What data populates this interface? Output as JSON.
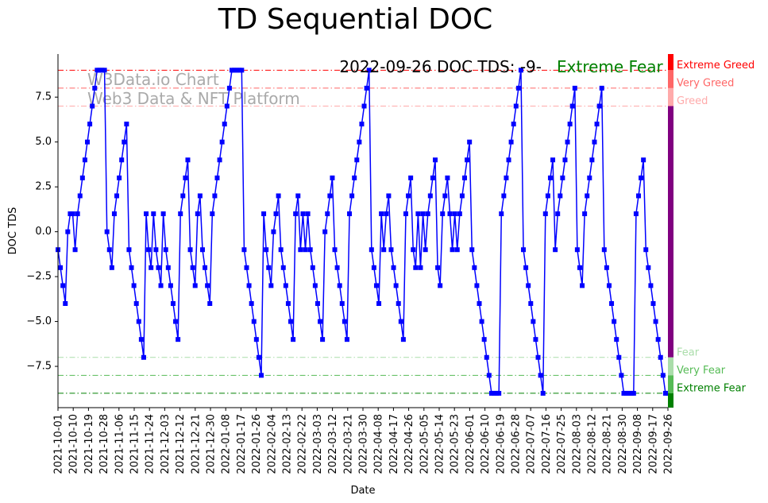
{
  "chart_data": {
    "type": "line",
    "title": "TD Sequential DOC",
    "xlabel": "Date",
    "ylabel": "DOC TDS",
    "ylim": [
      -9.8,
      9.9
    ],
    "yticks": [
      -7.5,
      -5.0,
      -2.5,
      0.0,
      2.5,
      5.0,
      7.5
    ],
    "ytick_labels": [
      "−7.5",
      "−5.0",
      "−2.5",
      "0.0",
      "2.5",
      "5.0",
      "7.5"
    ],
    "xticks": [
      "2021-10-01",
      "2021-10-10",
      "2021-10-19",
      "2021-10-28",
      "2021-11-06",
      "2021-11-15",
      "2021-11-24",
      "2021-12-03",
      "2021-12-12",
      "2021-12-21",
      "2021-12-30",
      "2022-01-08",
      "2022-01-17",
      "2022-01-26",
      "2022-02-04",
      "2022-02-13",
      "2022-02-22",
      "2022-03-03",
      "2022-03-12",
      "2022-03-21",
      "2022-03-30",
      "2022-04-08",
      "2022-04-17",
      "2022-04-26",
      "2022-05-05",
      "2022-05-14",
      "2022-05-23",
      "2022-06-01",
      "2022-06-10",
      "2022-06-19",
      "2022-06-28",
      "2022-07-07",
      "2022-07-16",
      "2022-07-25",
      "2022-08-03",
      "2022-08-12",
      "2022-08-21",
      "2022-08-30",
      "2022-09-08",
      "2022-09-17",
      "2022-09-26"
    ],
    "x_start": "2021-10-01",
    "x_end": "2022-09-26",
    "annotation": "2022-09-26 DOC TDS: -9-",
    "status_label": "Extreme Fear",
    "watermark": [
      "W3Data.io Chart",
      "Web3 Data & NFT Platform"
    ],
    "levels": [
      {
        "name": "Extreme Greed",
        "value": 9,
        "color": "#ff0000"
      },
      {
        "name": "Very Greed",
        "value": 8,
        "color": "#ff6666"
      },
      {
        "name": "Greed",
        "value": 7,
        "color": "#ffaaaa"
      },
      {
        "name": "Fear",
        "value": -7,
        "color": "#aaddaa"
      },
      {
        "name": "Very Fear",
        "value": -8,
        "color": "#55bb55"
      },
      {
        "name": "Extreme Fear",
        "value": -9,
        "color": "#008000"
      }
    ],
    "side_bar": [
      {
        "from": 9,
        "to": 9.9,
        "color": "#ff0000"
      },
      {
        "from": 8,
        "to": 9,
        "color": "#ff6666"
      },
      {
        "from": 7,
        "to": 8,
        "color": "#ffaaaa"
      },
      {
        "from": -7,
        "to": 7,
        "color": "#800080"
      },
      {
        "from": -8,
        "to": -7,
        "color": "#aaddaa"
      },
      {
        "from": -9,
        "to": -8,
        "color": "#55bb55"
      },
      {
        "from": -9.8,
        "to": -9,
        "color": "#008000"
      }
    ],
    "series": [
      {
        "name": "DOC TDS",
        "color": "#0000ff",
        "values": [
          -1,
          -2,
          -3,
          -4,
          0,
          1,
          1,
          -1,
          1,
          2,
          3,
          4,
          5,
          6,
          7,
          8,
          9,
          9,
          9,
          9,
          0,
          -1,
          -2,
          1,
          2,
          3,
          4,
          5,
          6,
          -1,
          -2,
          -3,
          -4,
          -5,
          -6,
          -7,
          1,
          -1,
          -2,
          1,
          -1,
          -2,
          -3,
          1,
          -1,
          -2,
          -3,
          -4,
          -5,
          -6,
          1,
          2,
          3,
          4,
          -1,
          -2,
          -3,
          1,
          2,
          -1,
          -2,
          -3,
          -4,
          1,
          2,
          3,
          4,
          5,
          6,
          7,
          8,
          9,
          9,
          9,
          9,
          9,
          -1,
          -2,
          -3,
          -4,
          -5,
          -6,
          -7,
          -8,
          1,
          -1,
          -2,
          -3,
          0,
          1,
          2,
          -1,
          -2,
          -3,
          -4,
          -5,
          -6,
          1,
          2,
          -1,
          1,
          -1,
          1,
          -1,
          -2,
          -3,
          -4,
          -5,
          -6,
          0,
          1,
          2,
          3,
          -1,
          -2,
          -3,
          -4,
          -5,
          -6,
          1,
          2,
          3,
          4,
          5,
          6,
          7,
          8,
          9,
          -1,
          -2,
          -3,
          -4,
          1,
          -1,
          1,
          2,
          -1,
          -2,
          -3,
          -4,
          -5,
          -6,
          1,
          2,
          3,
          -1,
          -2,
          1,
          -2,
          1,
          -1,
          1,
          2,
          3,
          4,
          -2,
          -3,
          1,
          2,
          3,
          1,
          -1,
          1,
          -1,
          1,
          2,
          3,
          4,
          5,
          -1,
          -2,
          -3,
          -4,
          -5,
          -6,
          -7,
          -8,
          -9,
          -9,
          -9,
          -9,
          1,
          2,
          3,
          4,
          5,
          6,
          7,
          8,
          9,
          -1,
          -2,
          -3,
          -4,
          -5,
          -6,
          -7,
          -8,
          -9,
          1,
          2,
          3,
          4,
          -1,
          1,
          2,
          3,
          4,
          5,
          6,
          7,
          8,
          -1,
          -2,
          -3,
          1,
          2,
          3,
          4,
          5,
          6,
          7,
          8,
          -1,
          -2,
          -3,
          -4,
          -5,
          -6,
          -7,
          -8,
          -9,
          -9,
          -9,
          -9,
          -9,
          1,
          2,
          3,
          4,
          -1,
          -2,
          -3,
          -4,
          -5,
          -6,
          -7,
          -8,
          -9,
          -9
        ]
      }
    ]
  }
}
